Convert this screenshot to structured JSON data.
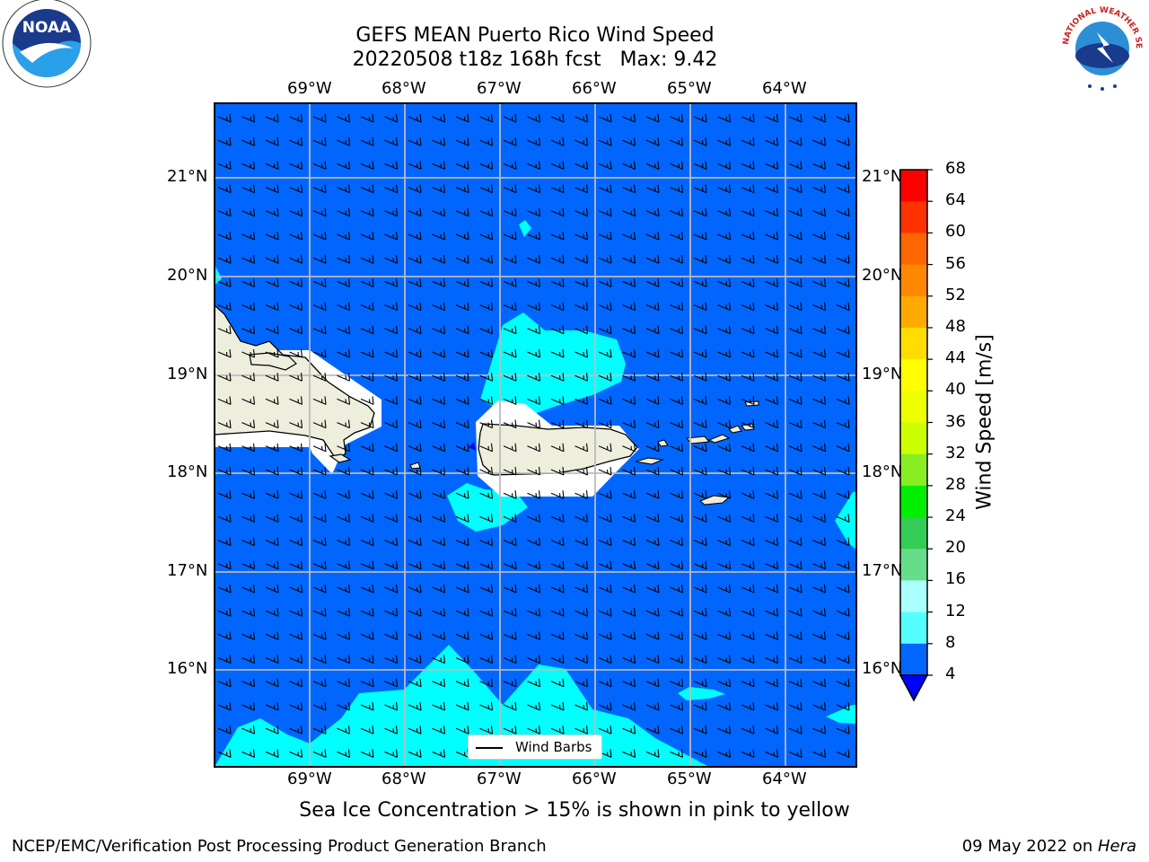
{
  "title": {
    "line1": "GEFS MEAN Puerto Rico Wind Speed",
    "line2": "20220508 t18z 168h fcst   Max: 9.42"
  },
  "map": {
    "lon_labels": [
      "69°W",
      "68°W",
      "67°W",
      "66°W",
      "65°W",
      "64°W"
    ],
    "lat_labels": [
      "21°N",
      "20°N",
      "19°N",
      "18°N",
      "17°N",
      "16°N"
    ],
    "lon_values": [
      -69,
      -68,
      -67,
      -66,
      -65,
      -64
    ],
    "lat_values": [
      21,
      20,
      19,
      18,
      17,
      16
    ],
    "extent": {
      "lon_min": -70.0,
      "lon_max": -63.25,
      "lat_min": 15.0,
      "lat_max": 21.75
    },
    "grid": true,
    "colors": {
      "ocean": "#0066ff",
      "land": "#eeeedd",
      "mask": "#ffffff",
      "fill_8_12": "#00ffff"
    }
  },
  "legend": {
    "label": "Wind Barbs"
  },
  "colorbar": {
    "label": "Wind Speed [m/s]",
    "ticks": [
      "68",
      "64",
      "60",
      "56",
      "52",
      "48",
      "44",
      "40",
      "36",
      "32",
      "28",
      "24",
      "20",
      "16",
      "12",
      "8",
      "4"
    ],
    "colors": [
      "#ff0000",
      "#ff2800",
      "#ff5000",
      "#ff7800",
      "#ff9c00",
      "#ffc000",
      "#ffe600",
      "#ffff00",
      "#e6ff00",
      "#c8ff00",
      "#78e632",
      "#00e600",
      "#00ff00",
      "#55ee80",
      "#99ffff",
      "#50ffff",
      "#00ffff",
      "#0066ff"
    ],
    "extend_color": "#0000ff"
  },
  "caption": "Sea Ice Concentration > 15% is shown in pink to yellow",
  "footer": {
    "left": "NCEP/EMC/Verification Post Processing Product Generation Branch",
    "date": "09 May 2022 on ",
    "machine": "Hera"
  },
  "logos": {
    "noaa": "NOAA",
    "nws": "NATIONAL WEATHER SERVICE"
  }
}
